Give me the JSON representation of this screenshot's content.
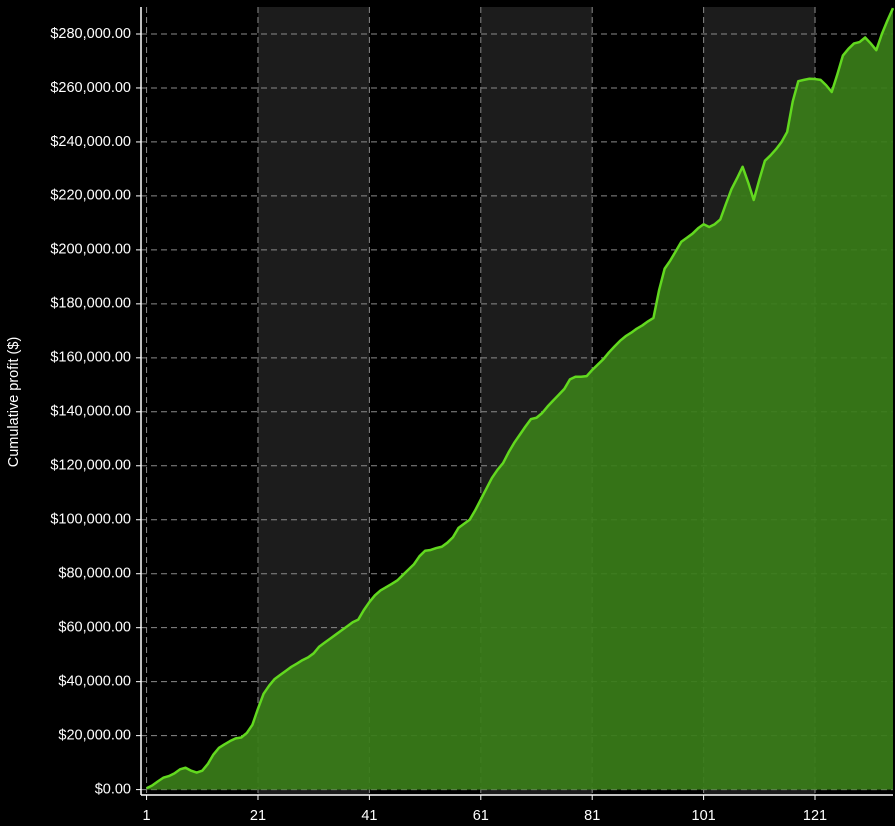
{
  "chart_data": {
    "type": "area",
    "y_label": "Cumulative profit ($)",
    "x": [
      1,
      2,
      3,
      4,
      5,
      6,
      7,
      8,
      9,
      10,
      11,
      12,
      13,
      14,
      15,
      16,
      17,
      18,
      19,
      20,
      21,
      22,
      23,
      24,
      25,
      26,
      27,
      28,
      29,
      30,
      31,
      32,
      33,
      34,
      35,
      36,
      37,
      38,
      39,
      40,
      41,
      42,
      43,
      44,
      45,
      46,
      47,
      48,
      49,
      50,
      51,
      52,
      53,
      54,
      55,
      56,
      57,
      58,
      59,
      60,
      61,
      62,
      63,
      64,
      65,
      66,
      67,
      68,
      69,
      70,
      71,
      72,
      73,
      74,
      75,
      76,
      77,
      78,
      79,
      80,
      81,
      82,
      83,
      84,
      85,
      86,
      87,
      88,
      89,
      90,
      91,
      92,
      93,
      94,
      95,
      96,
      97,
      98,
      99,
      100,
      101,
      102,
      103,
      104,
      105,
      106,
      107,
      108,
      109,
      110,
      111,
      112,
      113,
      114,
      115,
      116,
      117,
      118,
      119,
      120,
      121,
      122,
      123,
      124,
      125,
      126,
      127,
      128,
      129,
      130,
      131,
      132,
      133,
      134,
      135
    ],
    "values": [
      500,
      1500,
      3000,
      4400,
      5000,
      6000,
      7500,
      8100,
      7000,
      6300,
      7000,
      9500,
      13000,
      15500,
      16800,
      18000,
      19000,
      19300,
      21000,
      24000,
      30000,
      35500,
      38500,
      41000,
      42500,
      44000,
      45500,
      46700,
      48000,
      49000,
      50500,
      53000,
      54500,
      56000,
      57500,
      59000,
      60500,
      62000,
      63000,
      66500,
      69500,
      72000,
      73800,
      75000,
      76200,
      77500,
      79500,
      81500,
      83500,
      86500,
      88500,
      88800,
      89500,
      90000,
      91500,
      93500,
      97000,
      98500,
      100000,
      103500,
      107500,
      111500,
      115500,
      118500,
      121000,
      125000,
      128500,
      131500,
      134500,
      137300,
      137800,
      139500,
      142000,
      144200,
      146300,
      148500,
      152000,
      153000,
      153000,
      153200,
      155500,
      157500,
      159500,
      162000,
      164200,
      166300,
      168000,
      169300,
      170800,
      172000,
      173500,
      174800,
      185000,
      193000,
      196000,
      199500,
      203000,
      204500,
      206000,
      208000,
      209500,
      208500,
      209500,
      211300,
      217000,
      222500,
      226500,
      230800,
      225000,
      218500,
      226000,
      233000,
      235000,
      237300,
      240000,
      243700,
      255000,
      262500,
      263000,
      263400,
      263300,
      263000,
      261000,
      258500,
      265000,
      272000,
      274500,
      276500,
      277000,
      278700,
      276500,
      274000,
      280000,
      285000,
      289600
    ],
    "line_color": "#62d91f",
    "fill_color": "#3a7d19",
    "xlim": [
      0,
      135
    ],
    "xticks": [
      1,
      21,
      41,
      61,
      81,
      101,
      121
    ],
    "ylim": [
      -2000,
      290000
    ],
    "yticks": [
      {
        "value": 0,
        "label": "$0.00"
      },
      {
        "value": 20000,
        "label": "$20,000.00"
      },
      {
        "value": 40000,
        "label": "$40,000.00"
      },
      {
        "value": 60000,
        "label": "$60,000.00"
      },
      {
        "value": 80000,
        "label": "$80,000.00"
      },
      {
        "value": 100000,
        "label": "$100,000.00"
      },
      {
        "value": 120000,
        "label": "$120,000.00"
      },
      {
        "value": 140000,
        "label": "$140,000.00"
      },
      {
        "value": 160000,
        "label": "$160,000.00"
      },
      {
        "value": 180000,
        "label": "$180,000.00"
      },
      {
        "value": 200000,
        "label": "$200,000.00"
      },
      {
        "value": 220000,
        "label": "$220,000.00"
      },
      {
        "value": 240000,
        "label": "$240,000.00"
      },
      {
        "value": 260000,
        "label": "$260,000.00"
      },
      {
        "value": 280000,
        "label": "$280,000.00"
      }
    ],
    "grid": true
  }
}
